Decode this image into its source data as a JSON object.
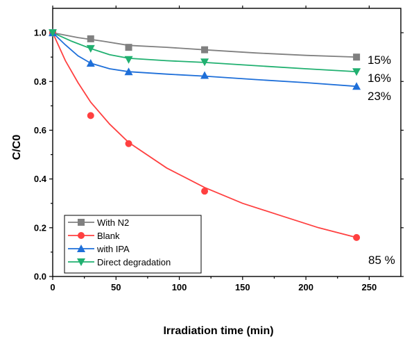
{
  "chart_data": {
    "type": "line",
    "xlabel": "Irradiation time (min)",
    "ylabel": "C/C0",
    "xlim": [
      0,
      275
    ],
    "ylim": [
      0,
      1.1
    ],
    "xticks": [
      0,
      50,
      100,
      150,
      200,
      250
    ],
    "yticks": [
      0.0,
      0.2,
      0.4,
      0.6,
      0.8,
      1.0
    ],
    "legend_position": "bottom-left",
    "series": [
      {
        "name": "With N2",
        "color": "#808080",
        "marker": "square",
        "points": [
          [
            0,
            1.0
          ],
          [
            30,
            0.975
          ],
          [
            60,
            0.94
          ],
          [
            120,
            0.93
          ],
          [
            240,
            0.9
          ]
        ],
        "curve": [
          [
            0,
            1.0
          ],
          [
            20,
            0.98
          ],
          [
            40,
            0.965
          ],
          [
            60,
            0.948
          ],
          [
            90,
            0.94
          ],
          [
            120,
            0.93
          ],
          [
            160,
            0.917
          ],
          [
            200,
            0.907
          ],
          [
            240,
            0.9
          ]
        ]
      },
      {
        "name": "Blank",
        "color": "#ff4040",
        "marker": "circle",
        "points": [
          [
            0,
            1.0
          ],
          [
            30,
            0.66
          ],
          [
            60,
            0.545
          ],
          [
            120,
            0.35
          ],
          [
            240,
            0.16
          ]
        ],
        "curve": [
          [
            0,
            1.0
          ],
          [
            10,
            0.885
          ],
          [
            20,
            0.795
          ],
          [
            30,
            0.715
          ],
          [
            45,
            0.625
          ],
          [
            60,
            0.55
          ],
          [
            90,
            0.445
          ],
          [
            120,
            0.365
          ],
          [
            150,
            0.3
          ],
          [
            180,
            0.25
          ],
          [
            210,
            0.2
          ],
          [
            240,
            0.16
          ]
        ]
      },
      {
        "name": "with IPA",
        "color": "#1e6fd9",
        "marker": "triangle-up",
        "points": [
          [
            0,
            1.0
          ],
          [
            30,
            0.875
          ],
          [
            60,
            0.84
          ],
          [
            120,
            0.825
          ],
          [
            240,
            0.78
          ]
        ],
        "curve": [
          [
            0,
            1.0
          ],
          [
            10,
            0.95
          ],
          [
            20,
            0.905
          ],
          [
            30,
            0.875
          ],
          [
            45,
            0.852
          ],
          [
            60,
            0.84
          ],
          [
            90,
            0.83
          ],
          [
            120,
            0.822
          ],
          [
            160,
            0.808
          ],
          [
            200,
            0.795
          ],
          [
            240,
            0.78
          ]
        ]
      },
      {
        "name": "Direct degradation",
        "color": "#20b070",
        "marker": "triangle-down",
        "points": [
          [
            0,
            1.0
          ],
          [
            30,
            0.935
          ],
          [
            60,
            0.89
          ],
          [
            120,
            0.88
          ],
          [
            240,
            0.84
          ]
        ],
        "curve": [
          [
            0,
            1.0
          ],
          [
            15,
            0.965
          ],
          [
            30,
            0.935
          ],
          [
            45,
            0.91
          ],
          [
            60,
            0.895
          ],
          [
            90,
            0.885
          ],
          [
            120,
            0.878
          ],
          [
            160,
            0.865
          ],
          [
            200,
            0.852
          ],
          [
            240,
            0.84
          ]
        ]
      }
    ],
    "annotations": [
      "15%",
      "16%",
      "23%",
      "85 %"
    ]
  }
}
